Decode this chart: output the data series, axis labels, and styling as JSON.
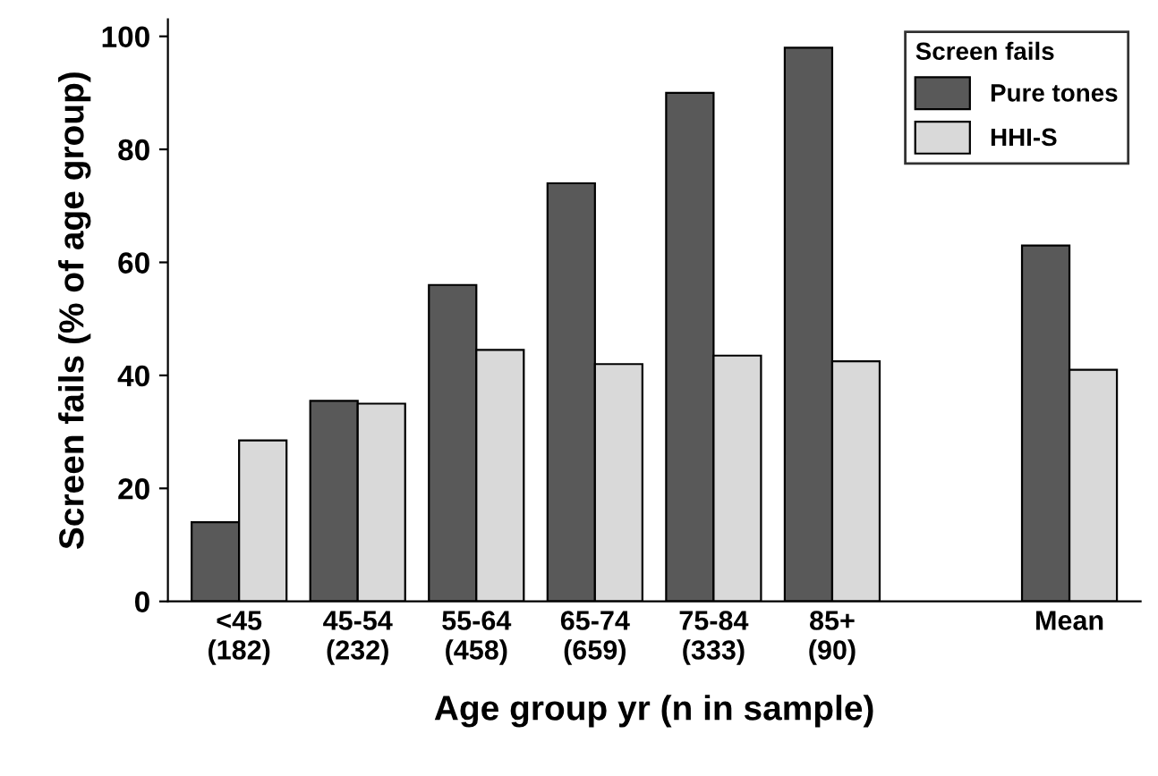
{
  "chart_data": {
    "type": "bar",
    "xlabel": "Age group yr (n in sample)",
    "ylabel": "Screen fails (% of age group)",
    "legend_title": "Screen fails",
    "categories": [
      "<45\n(182)",
      "45-54\n(232)",
      "55-64\n(458)",
      "65-74\n(659)",
      "75-84\n(333)",
      "85+\n(90)",
      null,
      "Mean"
    ],
    "series": [
      {
        "name": "Pure tones",
        "color": "#595959",
        "values": [
          14,
          35.5,
          56,
          74,
          90,
          98,
          null,
          63
        ]
      },
      {
        "name": "HHI-S",
        "color": "#d9d9d9",
        "values": [
          28.5,
          35,
          44.5,
          42,
          43.5,
          42.5,
          null,
          41
        ]
      }
    ],
    "ylim": [
      0,
      103
    ],
    "yticks": [
      0,
      20,
      40,
      60,
      80,
      100
    ],
    "grid": false,
    "legend": "top right"
  }
}
